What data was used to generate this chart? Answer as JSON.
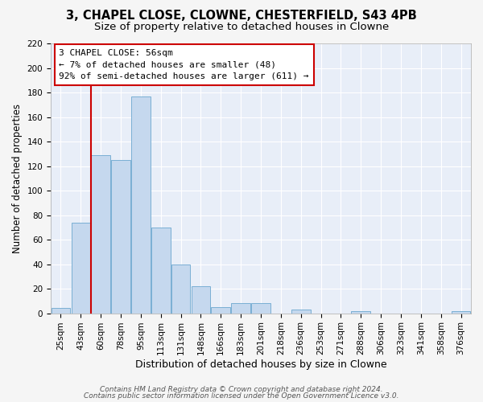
{
  "title1": "3, CHAPEL CLOSE, CLOWNE, CHESTERFIELD, S43 4PB",
  "title2": "Size of property relative to detached houses in Clowne",
  "xlabel": "Distribution of detached houses by size in Clowne",
  "ylabel": "Number of detached properties",
  "bar_color": "#c5d8ee",
  "bar_edge_color": "#7aafd4",
  "categories": [
    "25sqm",
    "43sqm",
    "60sqm",
    "78sqm",
    "95sqm",
    "113sqm",
    "131sqm",
    "148sqm",
    "166sqm",
    "183sqm",
    "201sqm",
    "218sqm",
    "236sqm",
    "253sqm",
    "271sqm",
    "288sqm",
    "306sqm",
    "323sqm",
    "341sqm",
    "358sqm",
    "376sqm"
  ],
  "values": [
    4,
    74,
    129,
    125,
    177,
    70,
    40,
    22,
    5,
    8,
    8,
    0,
    3,
    0,
    0,
    2,
    0,
    0,
    0,
    0,
    2
  ],
  "vline_color": "#cc0000",
  "ylim": [
    0,
    220
  ],
  "yticks": [
    0,
    20,
    40,
    60,
    80,
    100,
    120,
    140,
    160,
    180,
    200,
    220
  ],
  "annotation_line1": "3 CHAPEL CLOSE: 56sqm",
  "annotation_line2": "← 7% of detached houses are smaller (48)",
  "annotation_line3": "92% of semi-detached houses are larger (611) →",
  "footer1": "Contains HM Land Registry data © Crown copyright and database right 2024.",
  "footer2": "Contains public sector information licensed under the Open Government Licence v3.0.",
  "background_color": "#f5f5f5",
  "plot_bg_color": "#e8eef8",
  "grid_color": "#ffffff",
  "title1_fontsize": 10.5,
  "title2_fontsize": 9.5,
  "xlabel_fontsize": 9,
  "ylabel_fontsize": 8.5,
  "tick_fontsize": 7.5,
  "annotation_fontsize": 8,
  "footer_fontsize": 6.5
}
